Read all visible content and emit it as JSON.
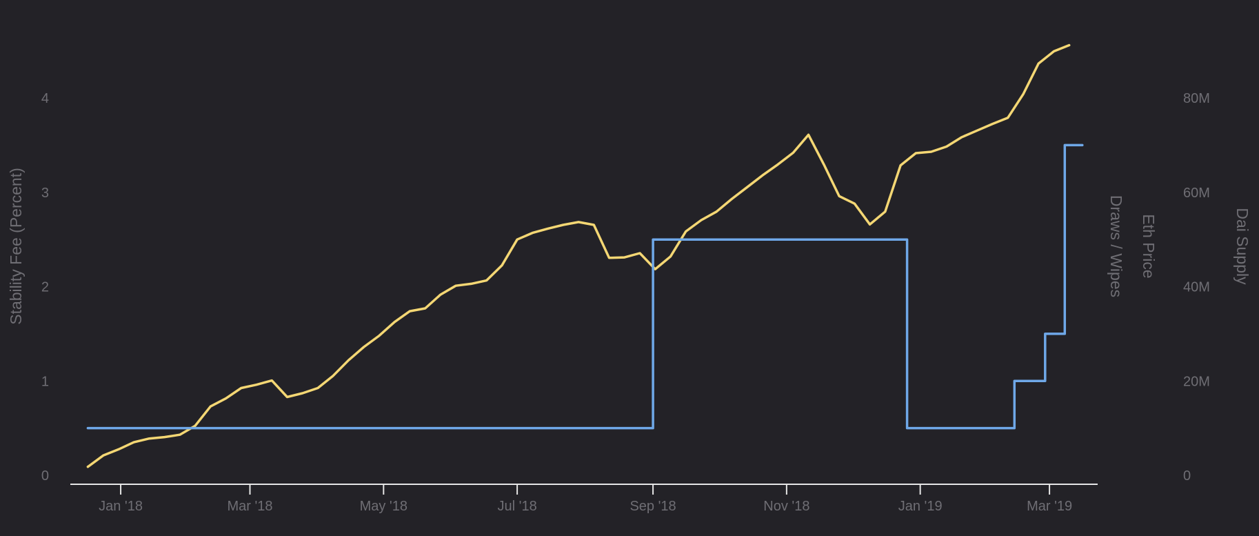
{
  "chart_data": {
    "type": "line",
    "title": "",
    "x_axis": {
      "ticks": [
        "Jan '18",
        "Mar '18",
        "May '18",
        "Jul '18",
        "Sep '18",
        "Nov '18",
        "Jan '19",
        "Mar '19"
      ],
      "tick_dates": [
        "2018-01-01",
        "2018-03-01",
        "2018-05-01",
        "2018-07-01",
        "2018-09-01",
        "2018-11-01",
        "2019-01-01",
        "2019-03-01"
      ],
      "range": [
        "2017-12-09",
        "2019-03-23"
      ]
    },
    "y_axes": {
      "left": {
        "label": "Stability Fee (Percent)",
        "ticks": [
          "0",
          "1",
          "2",
          "3",
          "4"
        ],
        "tick_values": [
          0,
          1,
          2,
          3,
          4
        ],
        "range": [
          0,
          4.6
        ]
      },
      "right_1": {
        "label": "Draws / Wipes"
      },
      "right_2": {
        "label": "Eth Price"
      },
      "right_3": {
        "label": "Dai Supply",
        "ticks": [
          "0",
          "20M",
          "40M",
          "60M",
          "80M"
        ],
        "tick_values": [
          0,
          20000000,
          40000000,
          60000000,
          80000000
        ],
        "range": [
          0,
          92000000
        ]
      }
    },
    "series": [
      {
        "axis": "right_3",
        "color": "#f4d774",
        "style": "line",
        "points": [
          [
            "2017-12-17",
            1800000
          ],
          [
            "2017-12-24",
            4200000
          ],
          [
            "2017-12-31",
            5500000
          ],
          [
            "2018-01-07",
            7000000
          ],
          [
            "2018-01-14",
            7800000
          ],
          [
            "2018-01-21",
            8100000
          ],
          [
            "2018-01-28",
            8600000
          ],
          [
            "2018-02-04",
            10500000
          ],
          [
            "2018-02-11",
            14600000
          ],
          [
            "2018-02-18",
            16300000
          ],
          [
            "2018-02-25",
            18500000
          ],
          [
            "2018-03-04",
            19200000
          ],
          [
            "2018-03-11",
            20100000
          ],
          [
            "2018-03-18",
            16600000
          ],
          [
            "2018-03-25",
            17400000
          ],
          [
            "2018-04-01",
            18500000
          ],
          [
            "2018-04-08",
            21100000
          ],
          [
            "2018-04-15",
            24400000
          ],
          [
            "2018-04-22",
            27200000
          ],
          [
            "2018-04-29",
            29600000
          ],
          [
            "2018-05-06",
            32500000
          ],
          [
            "2018-05-13",
            34800000
          ],
          [
            "2018-05-20",
            35400000
          ],
          [
            "2018-05-27",
            38300000
          ],
          [
            "2018-06-03",
            40200000
          ],
          [
            "2018-06-10",
            40600000
          ],
          [
            "2018-06-17",
            41300000
          ],
          [
            "2018-06-24",
            44500000
          ],
          [
            "2018-07-01",
            50000000
          ],
          [
            "2018-07-08",
            51400000
          ],
          [
            "2018-07-15",
            52300000
          ],
          [
            "2018-07-22",
            53100000
          ],
          [
            "2018-07-29",
            53700000
          ],
          [
            "2018-08-05",
            53100000
          ],
          [
            "2018-08-12",
            46100000
          ],
          [
            "2018-08-19",
            46200000
          ],
          [
            "2018-08-26",
            47100000
          ],
          [
            "2018-09-02",
            43700000
          ],
          [
            "2018-09-09",
            46400000
          ],
          [
            "2018-09-16",
            51700000
          ],
          [
            "2018-09-23",
            54100000
          ],
          [
            "2018-09-30",
            55900000
          ],
          [
            "2018-10-07",
            58600000
          ],
          [
            "2018-10-14",
            61100000
          ],
          [
            "2018-10-21",
            63600000
          ],
          [
            "2018-10-28",
            65900000
          ],
          [
            "2018-11-04",
            68400000
          ],
          [
            "2018-11-11",
            72200000
          ],
          [
            "2018-11-18",
            65900000
          ],
          [
            "2018-11-25",
            59200000
          ],
          [
            "2018-12-02",
            57600000
          ],
          [
            "2018-12-09",
            53200000
          ],
          [
            "2018-12-16",
            55900000
          ],
          [
            "2018-12-23",
            65700000
          ],
          [
            "2018-12-30",
            68300000
          ],
          [
            "2019-01-06",
            68600000
          ],
          [
            "2019-01-13",
            69700000
          ],
          [
            "2019-01-20",
            71700000
          ],
          [
            "2019-01-27",
            73100000
          ],
          [
            "2019-02-03",
            74500000
          ],
          [
            "2019-02-10",
            75800000
          ],
          [
            "2019-02-17",
            80800000
          ],
          [
            "2019-02-24",
            87300000
          ],
          [
            "2019-03-03",
            89900000
          ],
          [
            "2019-03-10",
            91200000
          ]
        ]
      },
      {
        "axis": "left",
        "color": "#6fa8e8",
        "style": "step",
        "points": [
          [
            "2017-12-17",
            0.5
          ],
          [
            "2018-09-01",
            0.5
          ],
          [
            "2018-09-01",
            2.5
          ],
          [
            "2018-12-26",
            2.5
          ],
          [
            "2018-12-26",
            0.5
          ],
          [
            "2019-02-13",
            0.5
          ],
          [
            "2019-02-13",
            1.0
          ],
          [
            "2019-02-27",
            1.0
          ],
          [
            "2019-02-27",
            1.5
          ],
          [
            "2019-03-08",
            1.5
          ],
          [
            "2019-03-08",
            3.5
          ],
          [
            "2019-03-16",
            3.5
          ]
        ]
      }
    ]
  }
}
